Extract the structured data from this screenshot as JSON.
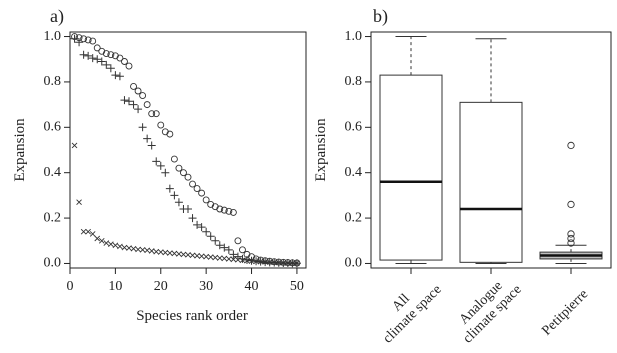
{
  "chart_data": [
    {
      "type": "scatter",
      "panel_label": "a)",
      "xlabel": "Species rank order",
      "ylabel": "Expansion",
      "xlim": [
        0,
        52
      ],
      "ylim": [
        -0.02,
        1.02
      ],
      "xticks": [
        "0",
        "10",
        "20",
        "30",
        "40",
        "50"
      ],
      "yticks": [
        "0.0",
        "0.2",
        "0.4",
        "0.6",
        "0.8",
        "1.0"
      ],
      "grid": false,
      "series": [
        {
          "marker": "o",
          "x": [
            1,
            2,
            3,
            4,
            5,
            6,
            7,
            8,
            9,
            10,
            11,
            12,
            13,
            14,
            15,
            16,
            17,
            18,
            19,
            20,
            21,
            22,
            23,
            24,
            25,
            26,
            27,
            28,
            29,
            30,
            31,
            32,
            33,
            34,
            35,
            36,
            37,
            38,
            39,
            40,
            41,
            42,
            43,
            44,
            45,
            46,
            47,
            48,
            49,
            50
          ],
          "y": [
            1.0,
            0.995,
            0.99,
            0.985,
            0.98,
            0.95,
            0.935,
            0.925,
            0.92,
            0.915,
            0.905,
            0.89,
            0.87,
            0.78,
            0.76,
            0.74,
            0.7,
            0.66,
            0.66,
            0.61,
            0.58,
            0.57,
            0.46,
            0.42,
            0.4,
            0.38,
            0.35,
            0.33,
            0.31,
            0.28,
            0.26,
            0.25,
            0.24,
            0.235,
            0.23,
            0.225,
            0.1,
            0.06,
            0.04,
            0.03,
            0.02,
            0.015,
            0.012,
            0.01,
            0.008,
            0.006,
            0.005,
            0.004,
            0.003,
            0.002
          ]
        },
        {
          "marker": "+",
          "x": [
            1,
            2,
            3,
            4,
            5,
            6,
            7,
            8,
            9,
            10,
            11,
            12,
            13,
            14,
            15,
            16,
            17,
            18,
            19,
            20,
            21,
            22,
            23,
            24,
            25,
            26,
            27,
            28,
            29,
            30,
            31,
            32,
            33,
            34,
            35,
            36,
            37,
            38,
            39,
            40,
            41,
            42,
            43,
            44,
            45,
            46,
            47,
            48,
            49,
            50
          ],
          "y": [
            0.99,
            0.975,
            0.92,
            0.915,
            0.905,
            0.9,
            0.89,
            0.875,
            0.86,
            0.83,
            0.825,
            0.72,
            0.715,
            0.7,
            0.68,
            0.6,
            0.55,
            0.52,
            0.45,
            0.43,
            0.4,
            0.33,
            0.3,
            0.27,
            0.24,
            0.24,
            0.2,
            0.17,
            0.16,
            0.14,
            0.12,
            0.1,
            0.08,
            0.07,
            0.06,
            0.04,
            0.03,
            0.02,
            0.015,
            0.012,
            0.01,
            0.008,
            0.006,
            0.005,
            0.004,
            0.003,
            0.002,
            0.002,
            0.001,
            0.001
          ]
        },
        {
          "marker": "x",
          "x": [
            1,
            2,
            3,
            4,
            5,
            6,
            7,
            8,
            9,
            10,
            11,
            12,
            13,
            14,
            15,
            16,
            17,
            18,
            19,
            20,
            21,
            22,
            23,
            24,
            25,
            26,
            27,
            28,
            29,
            30,
            31,
            32,
            33,
            34,
            35,
            36,
            37,
            38,
            39,
            40,
            41,
            42,
            43,
            44,
            45,
            46,
            47,
            48,
            49,
            50
          ],
          "y": [
            0.52,
            0.27,
            0.14,
            0.14,
            0.13,
            0.11,
            0.1,
            0.09,
            0.085,
            0.08,
            0.075,
            0.07,
            0.068,
            0.065,
            0.062,
            0.06,
            0.058,
            0.055,
            0.052,
            0.05,
            0.048,
            0.046,
            0.044,
            0.042,
            0.04,
            0.038,
            0.036,
            0.034,
            0.032,
            0.03,
            0.028,
            0.026,
            0.024,
            0.022,
            0.02,
            0.018,
            0.016,
            0.014,
            0.012,
            0.01,
            0.009,
            0.008,
            0.007,
            0.006,
            0.005,
            0.004,
            0.003,
            0.002,
            0.002,
            0.001
          ]
        }
      ]
    },
    {
      "type": "box",
      "panel_label": "b)",
      "ylabel": "Expansion",
      "ylim": [
        -0.02,
        1.02
      ],
      "yticks": [
        "0.0",
        "0.2",
        "0.4",
        "0.6",
        "0.8",
        "1.0"
      ],
      "categories": [
        [
          "All",
          "climate space"
        ],
        [
          "Analogue",
          "climate space"
        ],
        [
          "Petitpierre"
        ]
      ],
      "boxes": [
        {
          "whisker_low": 0.0,
          "q1": 0.015,
          "median": 0.36,
          "q3": 0.83,
          "whisker_high": 1.0,
          "outliers": []
        },
        {
          "whisker_low": 0.0,
          "q1": 0.005,
          "median": 0.24,
          "q3": 0.71,
          "whisker_high": 0.99,
          "outliers": []
        },
        {
          "whisker_low": 0.0,
          "q1": 0.02,
          "median": 0.035,
          "q3": 0.05,
          "whisker_high": 0.08,
          "outliers": [
            0.52,
            0.26,
            0.13,
            0.11,
            0.09
          ]
        }
      ],
      "box_colors": [
        "#ffffff",
        "#ffffff",
        "#bdbdbd"
      ]
    }
  ]
}
